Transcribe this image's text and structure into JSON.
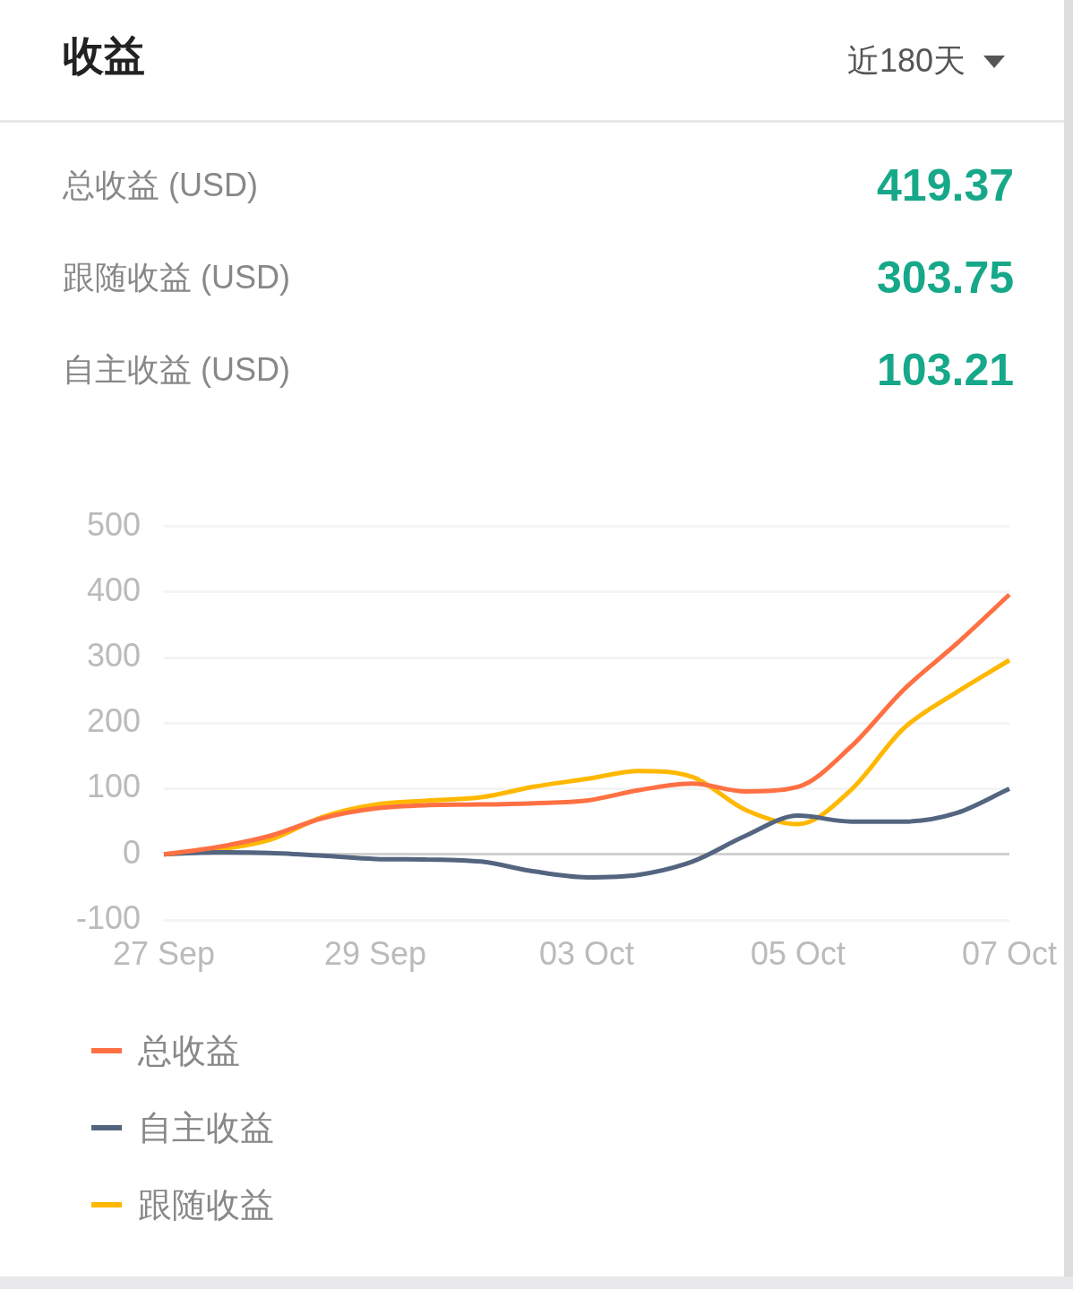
{
  "chart_data": {
    "type": "line",
    "title": "收益",
    "annotations": [
      "近180天",
      "总收益 (USD)",
      "419.37",
      "跟随收益 (USD)",
      "303.75",
      "自主收益 (USD)",
      "103.21"
    ],
    "categories": [
      "27 Sep",
      null,
      null,
      null,
      "29 Sep",
      null,
      null,
      null,
      "03 Oct",
      null,
      null,
      null,
      "05 Oct",
      null,
      null,
      null,
      "07 Oct"
    ],
    "series": [
      {
        "name": "总收益",
        "color": "#ff7043",
        "values": [
          0,
          11,
          28,
          55,
          70,
          75,
          76,
          78,
          82,
          98,
          108,
          96,
          103,
          164,
          251,
          321,
          396
        ]
      },
      {
        "name": "自主收益",
        "color": "#546580",
        "values": [
          0,
          3,
          2,
          -2,
          -7,
          -8,
          -11,
          -26,
          -35,
          -31,
          -11,
          28,
          59,
          50,
          50,
          63,
          100
        ]
      },
      {
        "name": "跟随收益",
        "color": "#ffb800",
        "values": [
          0,
          7,
          22,
          57,
          76,
          82,
          87,
          103,
          115,
          127,
          118,
          68,
          46,
          98,
          192,
          247,
          296
        ]
      }
    ],
    "ylim": [
      -100,
      500
    ],
    "yticks": [
      -100,
      0,
      100,
      200,
      300,
      400,
      500
    ],
    "grid": "y",
    "legend": "bottom",
    "marker": "none"
  }
}
